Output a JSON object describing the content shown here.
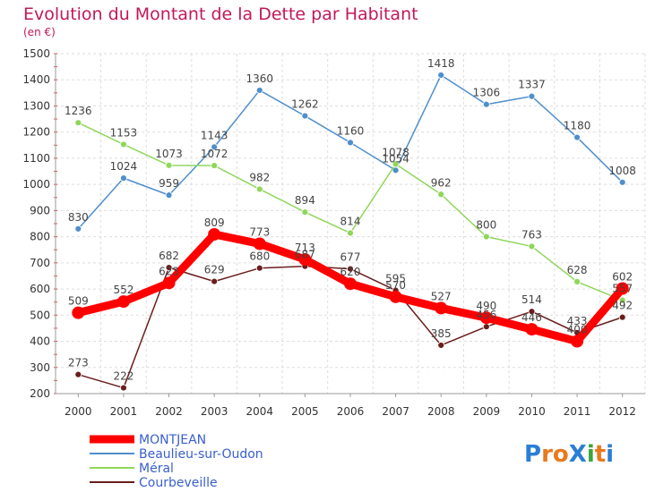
{
  "chart_data": {
    "type": "line",
    "title": "Evolution du Montant de la Dette par Habitant",
    "subtitle": "(en €)",
    "x": [
      "2000",
      "2001",
      "2002",
      "2003",
      "2004",
      "2005",
      "2006",
      "2007",
      "2008",
      "2009",
      "2010",
      "2011",
      "2012"
    ],
    "ylim": [
      200,
      1500
    ],
    "yticks": [
      200,
      300,
      400,
      500,
      600,
      700,
      800,
      900,
      1000,
      1100,
      1200,
      1300,
      1400,
      1500
    ],
    "grid": true,
    "legend_position": "bottom-left",
    "series": [
      {
        "name": "MONTJEAN",
        "color": "#ff0000",
        "values": [
          509,
          552,
          623,
          809,
          773,
          713,
          620,
          570,
          527,
          490,
          446,
          400,
          602
        ],
        "labels": [
          "509",
          "552",
          "623",
          "809",
          "773",
          "713",
          "620",
          "570",
          "527",
          "490",
          "446",
          "400",
          "602"
        ]
      },
      {
        "name": "Beaulieu-sur-Oudon",
        "color": "#4f8fcb",
        "values": [
          830,
          1024,
          959,
          1143,
          1360,
          1262,
          1160,
          1054,
          1418,
          1306,
          1337,
          1180,
          1008
        ],
        "labels": [
          "830",
          "1024",
          "959",
          "1143",
          "1360",
          "1262",
          "1160",
          "1054",
          "1418",
          "1306",
          "1337",
          "1180",
          "1008"
        ]
      },
      {
        "name": "Méral",
        "color": "#8fd65a",
        "values": [
          1236,
          1153,
          1073,
          1072,
          982,
          894,
          814,
          1078,
          962,
          800,
          763,
          628,
          557
        ],
        "labels": [
          "1236",
          "1153",
          "1073",
          "1072",
          "982",
          "894",
          "814",
          "1078",
          "962",
          "800",
          "763",
          "628",
          "557"
        ]
      },
      {
        "name": "Courbeveille",
        "color": "#6b1d1d",
        "values": [
          273,
          222,
          682,
          629,
          680,
          687,
          677,
          595,
          385,
          456,
          514,
          433,
          492
        ],
        "labels": [
          "273",
          "222",
          "682",
          "629",
          "680",
          "687",
          "677",
          "595",
          "385",
          "456",
          "514",
          "433",
          "492"
        ]
      }
    ]
  },
  "logo": {
    "text": "ProXiti",
    "colors": [
      "#2a7fd4",
      "#e87a1d",
      "#e87a1d",
      "#2a7fd4",
      "#3aa63a",
      "#e87a1d",
      "#2a7fd4"
    ]
  }
}
